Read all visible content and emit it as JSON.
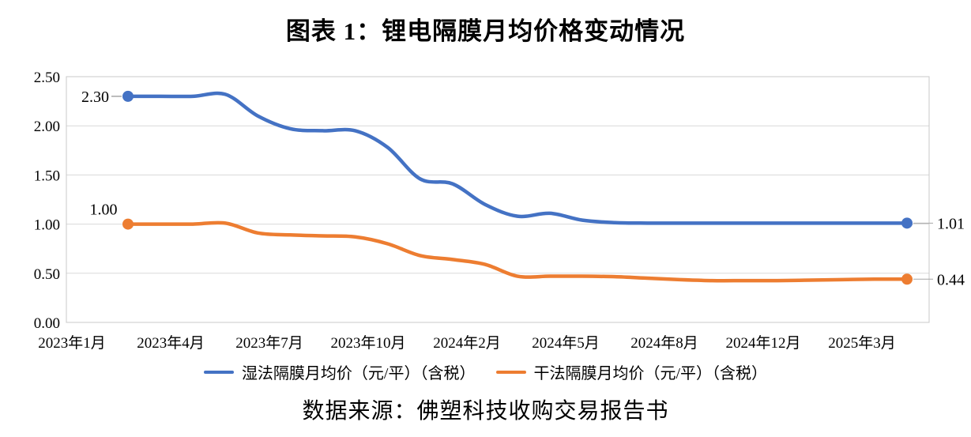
{
  "title": "图表 1：锂电隔膜月均价格变动情况",
  "source": "数据来源：佛塑科技收购交易报告书",
  "chart_data": {
    "type": "line",
    "title": "图表 1：锂电隔膜月均价格变动情况",
    "grid": true,
    "legend_position": "bottom",
    "y_axis": {
      "min": 0,
      "max": 2.5,
      "interval": 0.5,
      "ticks": [
        "2.50",
        "2.00",
        "1.50",
        "1.00",
        "0.50",
        "0.00"
      ]
    },
    "x_axis": {
      "ticks": [
        "2023年1月",
        "2023年4月",
        "2023年7月",
        "2023年10月",
        "2024年2月",
        "2024年5月",
        "2024年8月",
        "2024年12月",
        "2025年3月"
      ]
    },
    "series": [
      {
        "name": "湿法隔膜月均价（元/平）（含税）",
        "color": "#4472C4",
        "start_label": "2.30",
        "end_label": "1.01",
        "values": [
          2.3,
          2.3,
          2.3,
          2.32,
          2.1,
          1.97,
          1.95,
          1.95,
          1.78,
          1.46,
          1.41,
          1.2,
          1.08,
          1.11,
          1.04,
          1.015,
          1.01,
          1.01,
          1.01,
          1.01,
          1.01,
          1.01,
          1.01,
          1.01,
          1.01
        ]
      },
      {
        "name": "干法隔膜月均价（元/平）（含税）",
        "color": "#ED7D31",
        "start_label": "1.00",
        "end_label": "0.44",
        "values": [
          1.0,
          1.0,
          1.0,
          1.01,
          0.91,
          0.89,
          0.88,
          0.87,
          0.8,
          0.68,
          0.64,
          0.59,
          0.47,
          0.47,
          0.47,
          0.465,
          0.45,
          0.435,
          0.425,
          0.425,
          0.425,
          0.43,
          0.435,
          0.44,
          0.44
        ]
      }
    ]
  }
}
